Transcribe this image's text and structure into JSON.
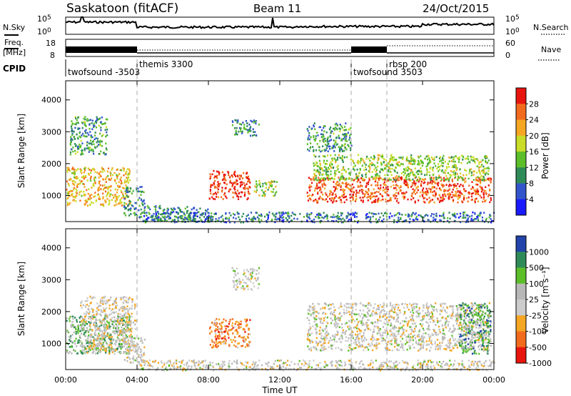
{
  "header": {
    "station": "Saskatoon (fitACF)",
    "beam": "Beam 11",
    "date": "24/Oct/2015"
  },
  "panels": {
    "noise": {
      "left_label": "N.Sky",
      "right_label": "N.Search",
      "left_ticks": [
        "10^5",
        "10^0"
      ],
      "right_ticks": [
        "10^5",
        "10^0"
      ]
    },
    "freq": {
      "left_label_1": "Freq.",
      "left_label_2": "[MHz]",
      "right_label": "Nave",
      "left_ticks": [
        "18",
        "8"
      ],
      "right_ticks": [
        "60",
        "0"
      ]
    },
    "cpid": {
      "label": "CPID",
      "programs": [
        {
          "name": "twofsound -3503",
          "start_hour": 0,
          "end_hour": 4
        },
        {
          "name": "themis 3300",
          "start_hour": 4,
          "end_hour": 16
        },
        {
          "name": "twofsound 3503",
          "start_hour": 16,
          "end_hour": 18
        },
        {
          "name": "rbsp 200",
          "start_hour": 18,
          "end_hour": 24
        }
      ]
    },
    "power": {
      "ylabel": "Slant Range [km]",
      "cbar_label": "Power [dB]",
      "cbar_ticks": [
        "28",
        "24",
        "20",
        "16",
        "12",
        "8",
        "4"
      ]
    },
    "velocity": {
      "ylabel": "Slant Range [km]",
      "cbar_label": "Velocity [m s⁻¹]",
      "cbar_ticks": [
        "1000",
        "500",
        "100",
        "25",
        "-25",
        "-100",
        "-500",
        "-1000"
      ]
    }
  },
  "xaxis": {
    "label": "Time UT",
    "ticks": [
      "00:00",
      "04:00",
      "08:00",
      "12:00",
      "16:00",
      "20:00",
      "00:00"
    ]
  },
  "yaxis_ticks": [
    "1000",
    "2000",
    "3000",
    "4000"
  ],
  "colors": {
    "power_scale": [
      "#1a1aff",
      "#3355cc",
      "#2e8b57",
      "#5cbf2a",
      "#c8dc28",
      "#f5a623",
      "#f26b1d",
      "#e8150e"
    ],
    "velocity_scale": [
      "#e8150e",
      "#f26b1d",
      "#f5a623",
      "#cccccc",
      "#b8b8b8",
      "#5cbf2a",
      "#2e8b57",
      "#2244aa"
    ],
    "guide_line": "#aaaaaa"
  },
  "chart_data": [
    {
      "type": "heatmap",
      "name": "power",
      "xlabel": "Time UT",
      "ylabel": "Slant Range [km]",
      "xlim_hours": [
        0,
        24
      ],
      "ylim_km": [
        180,
        4600
      ],
      "colorbar": {
        "label": "Power [dB]",
        "range": [
          0,
          30
        ],
        "ticks": [
          4,
          8,
          12,
          16,
          20,
          24,
          28
        ]
      },
      "echo_regions": [
        {
          "t0": 0.0,
          "t1": 3.6,
          "r0": 700,
          "r1": 1900,
          "level": 0.65
        },
        {
          "t0": 0.2,
          "t1": 2.3,
          "r0": 2300,
          "r1": 3500,
          "level": 0.35
        },
        {
          "t0": 3.2,
          "t1": 4.4,
          "r0": 400,
          "r1": 1300,
          "level": 0.3
        },
        {
          "t0": 4.3,
          "t1": 8.0,
          "r0": 200,
          "r1": 700,
          "level": 0.3
        },
        {
          "t0": 8.0,
          "t1": 10.3,
          "r0": 900,
          "r1": 1800,
          "level": 0.92
        },
        {
          "t0": 9.3,
          "t1": 10.8,
          "r0": 2900,
          "r1": 3400,
          "level": 0.3
        },
        {
          "t0": 10.5,
          "t1": 11.8,
          "r0": 1000,
          "r1": 1500,
          "level": 0.5
        },
        {
          "t0": 13.5,
          "t1": 23.8,
          "r0": 800,
          "r1": 1600,
          "level": 0.85
        },
        {
          "t0": 13.8,
          "t1": 23.7,
          "r0": 1500,
          "r1": 2300,
          "level": 0.5
        },
        {
          "t0": 13.5,
          "t1": 16.0,
          "r0": 2400,
          "r1": 3300,
          "level": 0.35
        },
        {
          "t0": 4.0,
          "t1": 24.0,
          "r0": 180,
          "r1": 500,
          "level": 0.25
        }
      ]
    },
    {
      "type": "heatmap",
      "name": "velocity",
      "xlabel": "Time UT",
      "ylabel": "Slant Range [km]",
      "xlim_hours": [
        0,
        24
      ],
      "ylim_km": [
        180,
        4600
      ],
      "colorbar": {
        "label": "Velocity [m s⁻¹]",
        "ticks": [
          1000,
          500,
          100,
          25,
          -25,
          -100,
          -500,
          -1000
        ]
      },
      "echo_regions": [
        {
          "t0": 0.0,
          "t1": 3.6,
          "r0": 700,
          "r1": 1900,
          "level": 0.7
        },
        {
          "t0": 0.8,
          "t1": 3.9,
          "r0": 700,
          "r1": 2500,
          "level": 0.45
        },
        {
          "t0": 3.2,
          "t1": 4.4,
          "r0": 400,
          "r1": 1300,
          "level": 0.5
        },
        {
          "t0": 8.0,
          "t1": 10.3,
          "r0": 900,
          "r1": 1800,
          "level": 0.25
        },
        {
          "t0": 9.3,
          "t1": 10.8,
          "r0": 2700,
          "r1": 3400,
          "level": 0.48
        },
        {
          "t0": 13.5,
          "t1": 23.8,
          "r0": 800,
          "r1": 2300,
          "level": 0.48
        },
        {
          "t0": 22.0,
          "t1": 23.8,
          "r0": 700,
          "r1": 2300,
          "level": 0.75
        },
        {
          "t0": 4.0,
          "t1": 24.0,
          "r0": 180,
          "r1": 500,
          "level": 0.48
        }
      ]
    }
  ]
}
